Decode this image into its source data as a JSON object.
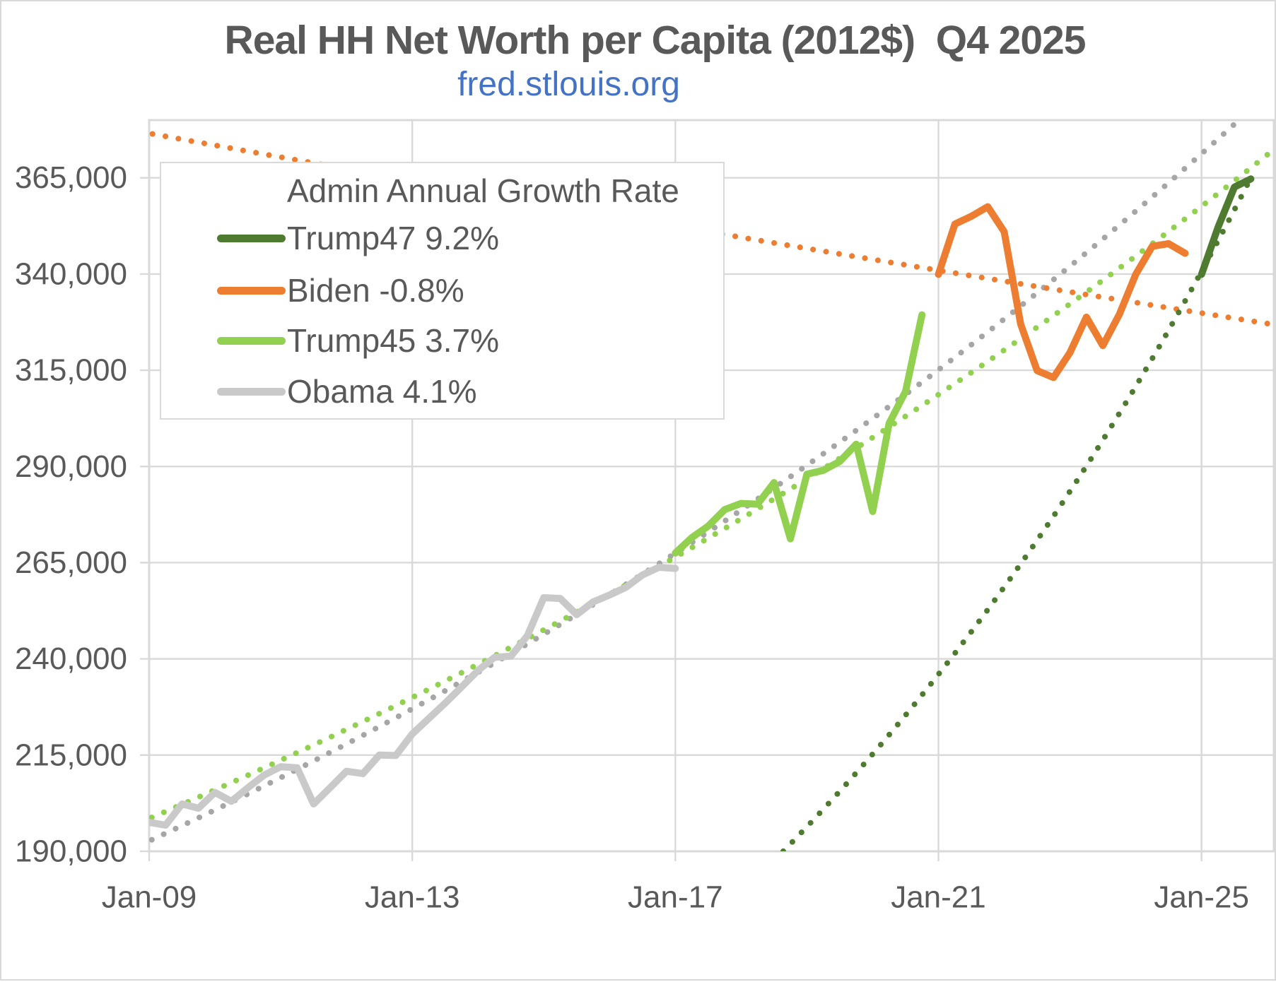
{
  "chart": {
    "title": "Real HH Net Worth per Capita (2012$)  Q4 2025",
    "subtitle": "fred.stlouis.org",
    "legend": {
      "title": "Admin Annual Growth Rate",
      "entries": [
        {
          "label": "Trump47 9.2%",
          "color": "#4E7B2F"
        },
        {
          "label": "Biden -0.8%",
          "color": "#ED7D31"
        },
        {
          "label": "Trump45 3.7%",
          "color": "#92D050"
        },
        {
          "label": "Obama 4.1%",
          "color": "#C9C9C9"
        }
      ]
    },
    "colors": {
      "axis_text": "#595959",
      "gridline": "#d9d9d9",
      "obama_trend_gray": "#A6A6A6",
      "background": "#ffffff"
    },
    "chart_data": {
      "type": "line",
      "title": "Real HH Net Worth per Capita (2012$)  Q4 2025",
      "subtitle": "fred.stlouis.org",
      "grid": true,
      "legend_position": "upper-left",
      "x_axis": {
        "domain": [
          2009.0,
          2026.1
        ],
        "tick_years": [
          2009,
          2013,
          2017,
          2021,
          2025
        ],
        "tick_labels": [
          "Jan-09",
          "Jan-13",
          "Jan-17",
          "Jan-21",
          "Jan-25"
        ]
      },
      "y_axis": {
        "domain": [
          190000,
          380000
        ],
        "tick_values": [
          190000,
          215000,
          240000,
          265000,
          290000,
          315000,
          340000,
          365000
        ],
        "tick_labels": [
          "190,000",
          "215,000",
          "240,000",
          "265,000",
          "290,000",
          "315,000",
          "340,000",
          "365,000"
        ]
      },
      "series": [
        {
          "name": "Obama",
          "color": "#C9C9C9",
          "start_year": 2009.0,
          "points_per_year": 4,
          "values": [
            197500,
            196800,
            202300,
            201200,
            205300,
            203000,
            206500,
            209800,
            212000,
            211700,
            202300,
            206500,
            210800,
            210200,
            215000,
            214900,
            220500,
            224500,
            228500,
            232700,
            237000,
            240400,
            240700,
            246000,
            255900,
            255700,
            251500,
            254800,
            256600,
            258600,
            261800,
            263800,
            263500
          ]
        },
        {
          "name": "Trump45",
          "color": "#92D050",
          "start_year": 2017.0,
          "points_per_year": 4,
          "values": [
            267500,
            271500,
            274500,
            278800,
            280400,
            280200,
            285800,
            271200,
            288000,
            289000,
            291300,
            295800,
            278300,
            301200,
            309500,
            329400
          ]
        },
        {
          "name": "Biden",
          "color": "#ED7D31",
          "start_year": 2021.0,
          "points_per_year": 4,
          "values": [
            339900,
            353000,
            355000,
            357500,
            351000,
            327000,
            314900,
            313100,
            319600,
            328800,
            321400,
            329500,
            339900,
            347200,
            347900,
            345400
          ]
        },
        {
          "name": "Trump47",
          "color": "#4E7B2F",
          "start_year": 2025.0,
          "points_per_year": 4,
          "values": [
            339900,
            352100,
            362600,
            364700
          ]
        }
      ],
      "trendlines": [
        {
          "name": "Obama trend 4.1%/yr",
          "color": "#A6A6A6",
          "rate_pct": 4.1,
          "start_year": 2009.04,
          "start_value": 193000,
          "end_year": 2025.6,
          "end_value": 380500
        },
        {
          "name": "Trump45 trend 3.7%/yr",
          "color": "#92D050",
          "rate_pct": 3.7,
          "start_year": 2009.04,
          "start_value": 198800,
          "end_year": 2026.0,
          "end_value": 371000
        },
        {
          "name": "Biden trend -0.8%/yr",
          "color": "#ED7D31",
          "rate_pct": -0.8,
          "start_year": 2009.05,
          "start_value": 376400,
          "end_year": 2026.05,
          "end_value": 327000
        },
        {
          "name": "Trump47 trend 9.2%/yr",
          "color": "#4E7B2F",
          "rate_pct": 9.2,
          "start_year": 2018.64,
          "start_value": 190000,
          "end_year": 2025.78,
          "end_value": 366000
        }
      ]
    }
  }
}
